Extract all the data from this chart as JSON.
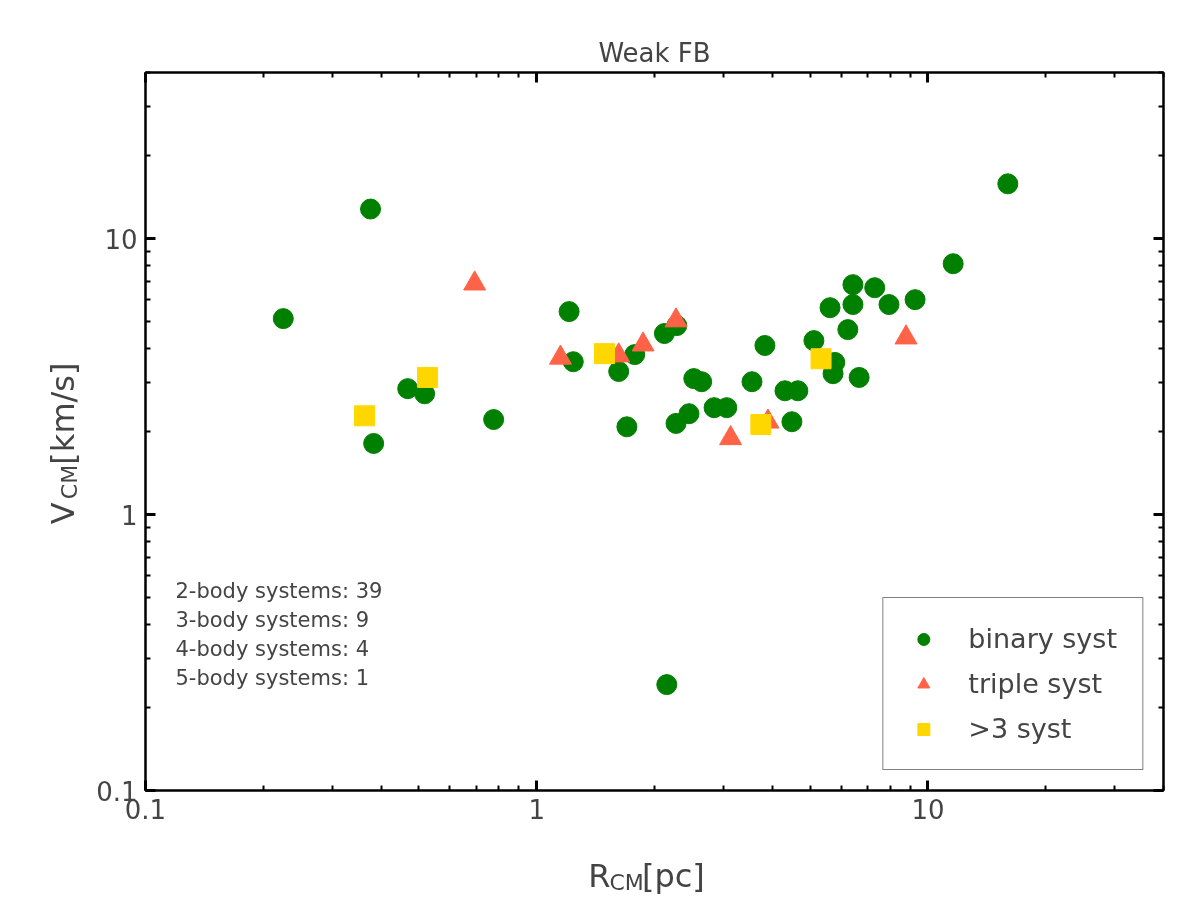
{
  "chart_data": {
    "type": "scatter",
    "title": "Weak FB",
    "xlabel": "R$_{CM}$[pc]",
    "ylabel": "V$_{CM}$[km/s]",
    "log": "xy",
    "xlim": [
      0.1,
      40
    ],
    "ylim": [
      0.1,
      40
    ],
    "xticks": [
      0.1,
      1,
      10
    ],
    "yticks": [
      0.1,
      1,
      10
    ],
    "grid": false,
    "legend": "bottom right",
    "annotations": [
      "2-body systems: 39",
      "3-body systems: 9",
      "4-body systems: 4",
      "5-body systems: 1"
    ],
    "series": [
      {
        "name": "binary syst",
        "color": "#008000",
        "marker": "circle",
        "x": [
          0.225,
          0.376,
          0.383,
          0.468,
          0.517,
          0.776,
          1.21,
          1.24,
          1.62,
          1.7,
          1.78,
          2.12,
          2.28,
          2.27,
          2.45,
          2.52,
          2.64,
          2.84,
          3.06,
          3.55,
          3.83,
          4.31,
          4.65,
          4.49,
          5.11,
          5.62,
          5.78,
          5.72,
          6.24,
          6.43,
          6.43,
          6.67,
          7.31,
          7.95,
          9.27,
          11.6,
          16.0,
          2.15
        ],
        "values": [
          5.13,
          12.8,
          1.81,
          2.86,
          2.74,
          2.21,
          5.44,
          3.58,
          3.3,
          2.08,
          3.8,
          4.53,
          4.84,
          2.14,
          2.32,
          3.11,
          3.03,
          2.44,
          2.44,
          3.03,
          4.1,
          2.81,
          2.81,
          2.17,
          4.27,
          5.62,
          3.56,
          3.24,
          4.68,
          5.77,
          6.81,
          3.14,
          6.64,
          5.77,
          6.01,
          8.11,
          15.8,
          0.242
        ]
      },
      {
        "name": "triple syst",
        "color": "#ff6347",
        "marker": "triangle",
        "x": [
          0.694,
          1.15,
          1.62,
          1.87,
          2.27,
          3.13,
          3.9,
          8.79
        ],
        "values": [
          6.87,
          3.7,
          3.77,
          4.13,
          5.05,
          1.89,
          2.17,
          4.38
        ]
      },
      {
        "name": ">3 syst",
        "color": "#ffd700",
        "marker": "square",
        "x": [
          0.363,
          0.526,
          1.49,
          3.74,
          5.33
        ],
        "values": [
          2.28,
          3.14,
          3.83,
          2.12,
          3.67
        ]
      }
    ]
  }
}
